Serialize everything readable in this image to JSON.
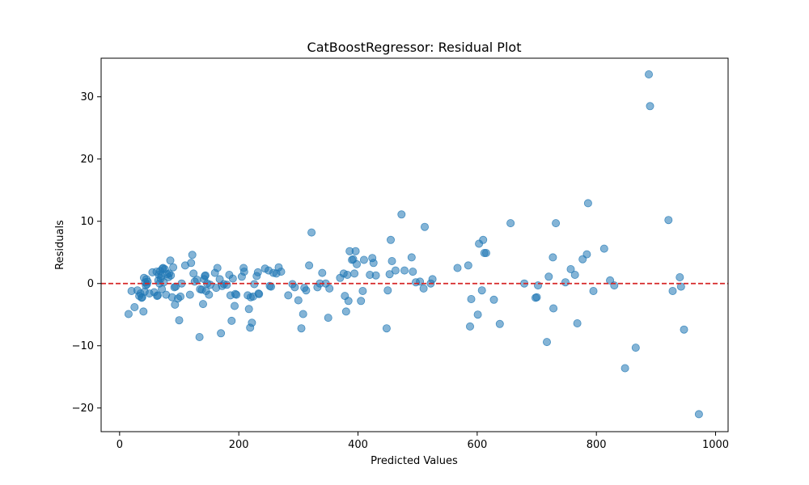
{
  "chart_data": {
    "type": "scatter",
    "title": "CatBoostRegressor: Residual Plot",
    "xlabel": "Predicted Values",
    "ylabel": "Residuals",
    "xlim": [
      -31,
      1021
    ],
    "ylim": [
      -23.8,
      36.2
    ],
    "xticks": [
      0,
      200,
      400,
      600,
      800,
      1000
    ],
    "yticks": [
      -20,
      -10,
      0,
      10,
      20,
      30
    ],
    "xtick_labels": [
      "0",
      "200",
      "400",
      "600",
      "800",
      "1000"
    ],
    "ytick_labels": [
      "−20",
      "−10",
      "0",
      "10",
      "20",
      "30"
    ],
    "grid": false,
    "legend": "none",
    "reference_line": {
      "y": 0,
      "style": "dashed",
      "color": "#d62728"
    },
    "point_color": "#1f77b4",
    "point_alpha": 0.55,
    "points": [
      [
        15,
        -4.9
      ],
      [
        20,
        -1.2
      ],
      [
        25,
        -3.8
      ],
      [
        30,
        -1.1
      ],
      [
        33,
        -2.0
      ],
      [
        35,
        -1.6
      ],
      [
        37,
        -2.3
      ],
      [
        38,
        -2.2
      ],
      [
        40,
        -4.5
      ],
      [
        41,
        0.9
      ],
      [
        42,
        -1.3
      ],
      [
        43,
        0.2
      ],
      [
        44,
        -0.3
      ],
      [
        45,
        0.7
      ],
      [
        46,
        -0.1
      ],
      [
        47,
        0.3
      ],
      [
        50,
        -1.6
      ],
      [
        55,
        1.8
      ],
      [
        58,
        -1.4
      ],
      [
        62,
        1.9
      ],
      [
        63,
        -2.0
      ],
      [
        64,
        -1.9
      ],
      [
        65,
        0.5
      ],
      [
        66,
        1.4
      ],
      [
        67,
        0.0
      ],
      [
        68,
        2.0
      ],
      [
        69,
        0.8
      ],
      [
        70,
        1.2
      ],
      [
        71,
        -0.9
      ],
      [
        72,
        2.4
      ],
      [
        73,
        2.5
      ],
      [
        74,
        0.2
      ],
      [
        76,
        2.3
      ],
      [
        78,
        -1.8
      ],
      [
        80,
        1.5
      ],
      [
        82,
        1.0
      ],
      [
        83,
        1.6
      ],
      [
        85,
        3.7
      ],
      [
        86,
        1.3
      ],
      [
        88,
        -2.2
      ],
      [
        90,
        2.6
      ],
      [
        92,
        -0.6
      ],
      [
        93,
        -3.4
      ],
      [
        94,
        -0.5
      ],
      [
        98,
        -2.4
      ],
      [
        100,
        -5.9
      ],
      [
        102,
        -2.1
      ],
      [
        104,
        0.0
      ],
      [
        110,
        2.9
      ],
      [
        118,
        -1.8
      ],
      [
        120,
        3.3
      ],
      [
        122,
        4.6
      ],
      [
        124,
        1.6
      ],
      [
        126,
        0.3
      ],
      [
        130,
        0.6
      ],
      [
        134,
        -8.6
      ],
      [
        135,
        -0.9
      ],
      [
        138,
        -1.0
      ],
      [
        140,
        -3.3
      ],
      [
        142,
        0.7
      ],
      [
        143,
        1.2
      ],
      [
        144,
        1.3
      ],
      [
        145,
        -1.2
      ],
      [
        147,
        0.0
      ],
      [
        150,
        -1.8
      ],
      [
        152,
        -0.2
      ],
      [
        160,
        1.7
      ],
      [
        162,
        -0.7
      ],
      [
        164,
        2.5
      ],
      [
        168,
        0.7
      ],
      [
        170,
        -8.0
      ],
      [
        172,
        -0.4
      ],
      [
        175,
        -0.1
      ],
      [
        180,
        -0.2
      ],
      [
        184,
        1.4
      ],
      [
        186,
        -1.9
      ],
      [
        188,
        -6.0
      ],
      [
        190,
        0.8
      ],
      [
        193,
        -3.6
      ],
      [
        194,
        -1.7
      ],
      [
        196,
        -1.8
      ],
      [
        205,
        1.1
      ],
      [
        208,
        2.5
      ],
      [
        209,
        1.9
      ],
      [
        215,
        -1.9
      ],
      [
        217,
        -4.1
      ],
      [
        219,
        -7.1
      ],
      [
        220,
        -2.2
      ],
      [
        222,
        -6.3
      ],
      [
        224,
        -2.1
      ],
      [
        226,
        -0.1
      ],
      [
        230,
        1.2
      ],
      [
        232,
        1.8
      ],
      [
        233,
        -1.6
      ],
      [
        234,
        -1.7
      ],
      [
        244,
        2.4
      ],
      [
        250,
        2.1
      ],
      [
        252,
        -0.4
      ],
      [
        254,
        -0.5
      ],
      [
        258,
        1.7
      ],
      [
        263,
        1.6
      ],
      [
        267,
        2.6
      ],
      [
        271,
        1.9
      ],
      [
        283,
        -1.9
      ],
      [
        290,
        -0.1
      ],
      [
        294,
        -0.6
      ],
      [
        300,
        -2.7
      ],
      [
        305,
        -7.2
      ],
      [
        308,
        -4.9
      ],
      [
        310,
        -0.7
      ],
      [
        313,
        -1.1
      ],
      [
        318,
        2.9
      ],
      [
        322,
        8.2
      ],
      [
        332,
        -0.6
      ],
      [
        336,
        0.0
      ],
      [
        340,
        1.7
      ],
      [
        346,
        0.0
      ],
      [
        350,
        -5.5
      ],
      [
        352,
        -0.8
      ],
      [
        370,
        0.9
      ],
      [
        376,
        1.6
      ],
      [
        378,
        -2.0
      ],
      [
        380,
        -4.5
      ],
      [
        382,
        1.4
      ],
      [
        384,
        -2.8
      ],
      [
        386,
        5.2
      ],
      [
        390,
        3.8
      ],
      [
        392,
        3.9
      ],
      [
        394,
        1.6
      ],
      [
        396,
        5.2
      ],
      [
        398,
        3.1
      ],
      [
        405,
        -2.8
      ],
      [
        408,
        -1.2
      ],
      [
        410,
        3.8
      ],
      [
        420,
        1.4
      ],
      [
        424,
        4.1
      ],
      [
        426,
        3.3
      ],
      [
        430,
        1.3
      ],
      [
        448,
        -7.2
      ],
      [
        450,
        -1.1
      ],
      [
        453,
        1.5
      ],
      [
        455,
        7.0
      ],
      [
        457,
        3.6
      ],
      [
        463,
        2.1
      ],
      [
        473,
        11.1
      ],
      [
        478,
        2.1
      ],
      [
        490,
        4.2
      ],
      [
        492,
        1.9
      ],
      [
        497,
        0.2
      ],
      [
        504,
        0.3
      ],
      [
        510,
        -0.8
      ],
      [
        512,
        9.1
      ],
      [
        522,
        0.0
      ],
      [
        525,
        0.7
      ],
      [
        567,
        2.5
      ],
      [
        585,
        2.9
      ],
      [
        588,
        -6.9
      ],
      [
        590,
        -2.5
      ],
      [
        601,
        -5.0
      ],
      [
        603,
        6.4
      ],
      [
        608,
        -1.1
      ],
      [
        610,
        7.0
      ],
      [
        612,
        4.9
      ],
      [
        615,
        4.9
      ],
      [
        628,
        -2.6
      ],
      [
        638,
        -6.5
      ],
      [
        656,
        9.7
      ],
      [
        679,
        0.0
      ],
      [
        698,
        -2.3
      ],
      [
        700,
        -2.2
      ],
      [
        702,
        -0.3
      ],
      [
        717,
        -9.4
      ],
      [
        720,
        1.1
      ],
      [
        727,
        4.2
      ],
      [
        728,
        -4.0
      ],
      [
        732,
        9.7
      ],
      [
        748,
        0.2
      ],
      [
        757,
        2.3
      ],
      [
        764,
        1.4
      ],
      [
        768,
        -6.4
      ],
      [
        777,
        3.9
      ],
      [
        784,
        4.7
      ],
      [
        786,
        12.9
      ],
      [
        795,
        -1.2
      ],
      [
        813,
        5.6
      ],
      [
        823,
        0.5
      ],
      [
        830,
        -0.3
      ],
      [
        848,
        -13.6
      ],
      [
        866,
        -10.3
      ],
      [
        888,
        33.6
      ],
      [
        890,
        28.5
      ],
      [
        921,
        10.2
      ],
      [
        928,
        -1.2
      ],
      [
        940,
        1.0
      ],
      [
        942,
        -0.5
      ],
      [
        947,
        -7.4
      ],
      [
        972,
        -21.0
      ]
    ]
  }
}
